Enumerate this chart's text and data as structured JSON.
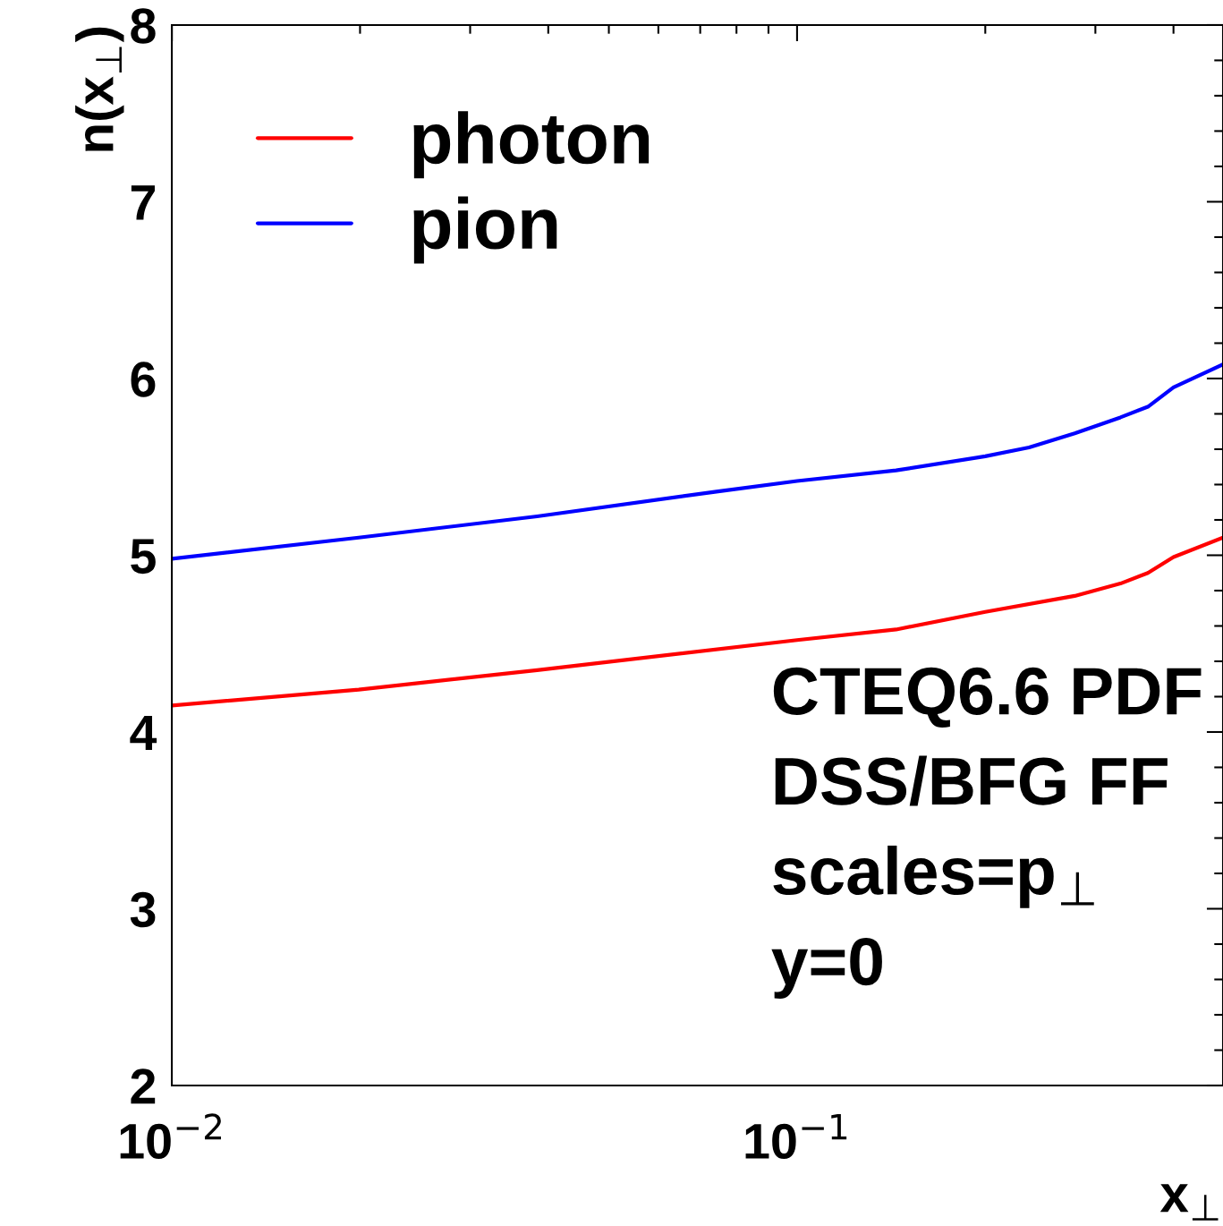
{
  "chart_data": {
    "type": "line",
    "xlabel": "x$_{⊥}$",
    "ylabel": "n(x$_{⊥}$)",
    "log": "x",
    "xlim": [
      0.01,
      0.48
    ],
    "ylim": [
      2,
      8
    ],
    "xticks": [
      {
        "value": 0.01,
        "label": "10$^{−2}$"
      },
      {
        "value": 0.1,
        "label": "10$^{−1}$"
      }
    ],
    "yticks": [
      2,
      3,
      4,
      5,
      6,
      7,
      8
    ],
    "grid": false,
    "legend": "top left",
    "line_style": "solid",
    "marker": "none",
    "series": [
      {
        "name": "photon",
        "color": "#ff0000",
        "x": [
          0.01,
          0.0199,
          0.0384,
          0.1,
          0.144,
          0.2,
          0.278,
          0.329,
          0.364,
          0.4,
          0.48
        ],
        "values": [
          4.15,
          4.24,
          4.35,
          4.52,
          4.58,
          4.68,
          4.77,
          4.84,
          4.9,
          4.99,
          5.1
        ]
      },
      {
        "name": "pion",
        "color": "#0000ff",
        "x": [
          0.01,
          0.0199,
          0.0384,
          0.0743,
          0.1,
          0.144,
          0.2,
          0.235,
          0.278,
          0.329,
          0.364,
          0.4,
          0.48
        ],
        "values": [
          4.98,
          5.1,
          5.22,
          5.36,
          5.42,
          5.48,
          5.56,
          5.61,
          5.69,
          5.78,
          5.84,
          5.95,
          6.08
        ]
      }
    ],
    "annotations": [
      "CTEQ6.6 PDF",
      "DSS/BFG FF",
      "scales=p$_{⊥}$",
      "y=0"
    ]
  }
}
